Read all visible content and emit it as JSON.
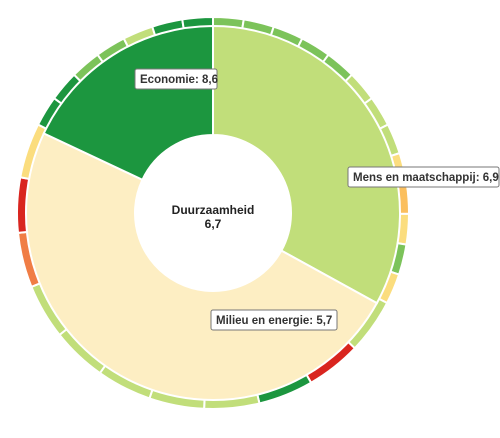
{
  "chart_data": {
    "type": "pie",
    "center": {
      "title": "Duurzaamheid",
      "value": "6,7"
    },
    "inner_ring": [
      {
        "label": "Mens en maatschappij: 6,9",
        "share": 33.0,
        "color": "#c1de7a"
      },
      {
        "label": "Milieu en energie: 5,7",
        "share": 49.0,
        "color": "#fdeec3"
      },
      {
        "label": "Economie: 8,6",
        "share": 18.0,
        "color": "#1c963f"
      }
    ],
    "outer_ring": [
      {
        "share": 2.6,
        "color": "#7cc35a"
      },
      {
        "share": 2.6,
        "color": "#7cc35a"
      },
      {
        "share": 2.6,
        "color": "#7cc35a"
      },
      {
        "share": 2.6,
        "color": "#7cc35a"
      },
      {
        "share": 2.6,
        "color": "#7cc35a"
      },
      {
        "share": 2.6,
        "color": "#c1de7a"
      },
      {
        "share": 2.6,
        "color": "#c1de7a"
      },
      {
        "share": 2.6,
        "color": "#c1de7a"
      },
      {
        "share": 2.6,
        "color": "#fbdd7e"
      },
      {
        "share": 2.6,
        "color": "#fbbf5e"
      },
      {
        "share": 2.6,
        "color": "#fbdd7e"
      },
      {
        "share": 2.6,
        "color": "#7cc35a"
      },
      {
        "share": 2.6,
        "color": "#fbdd7e"
      },
      {
        "share": 4.7,
        "color": "#c1de7a"
      },
      {
        "share": 4.7,
        "color": "#d9251f"
      },
      {
        "share": 4.7,
        "color": "#1c963f"
      },
      {
        "share": 4.7,
        "color": "#c1de7a"
      },
      {
        "share": 4.7,
        "color": "#c1de7a"
      },
      {
        "share": 4.7,
        "color": "#c1de7a"
      },
      {
        "share": 4.7,
        "color": "#c1de7a"
      },
      {
        "share": 4.7,
        "color": "#c1de7a"
      },
      {
        "share": 4.7,
        "color": "#f07d45"
      },
      {
        "share": 4.7,
        "color": "#d9251f"
      },
      {
        "share": 4.7,
        "color": "#fbdd7e"
      },
      {
        "share": 2.6,
        "color": "#1c963f"
      },
      {
        "share": 2.6,
        "color": "#1c963f"
      },
      {
        "share": 2.6,
        "color": "#7cc35a"
      },
      {
        "share": 2.6,
        "color": "#7cc35a"
      },
      {
        "share": 2.6,
        "color": "#c1de7a"
      },
      {
        "share": 2.6,
        "color": "#1c963f"
      },
      {
        "share": 2.6,
        "color": "#1c963f"
      }
    ]
  }
}
